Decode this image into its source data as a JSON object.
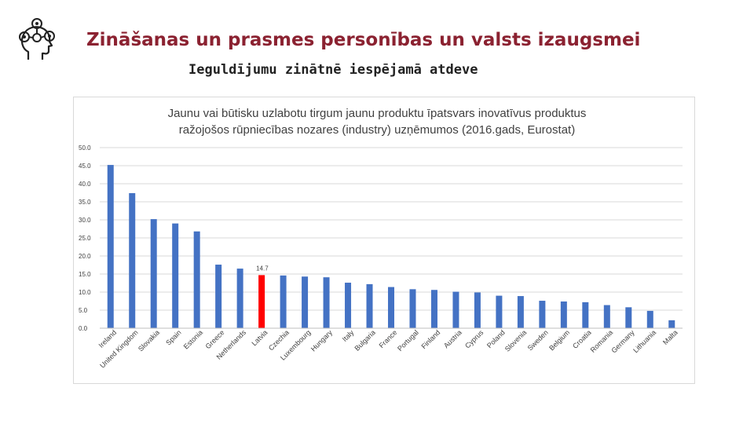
{
  "header": {
    "title": "Zināšanas un prasmes personības un valsts izaugsmei",
    "subtitle": "Ieguldījumu zinātnē iespējamā atdeve",
    "logo_icon": "head-with-ideas-icon"
  },
  "chart_data": {
    "type": "bar",
    "title_line1": "Jaunu vai būtisku uzlabotu tirgum jaunu produktu īpatsvars inovatīvus produktus",
    "title_line2": "ražojošos  rūpniecības nozares (industry) uzņēmumos (2016.gads, Eurostat)",
    "categories": [
      "Ireland",
      "United Kingdom",
      "Slovakia",
      "Spain",
      "Estonia",
      "Greece",
      "Netherlands",
      "Latvia",
      "Czechia",
      "Luxembourg",
      "Hungary",
      "Italy",
      "Bulgaria",
      "France",
      "Portugal",
      "Finland",
      "Austria",
      "Cyprus",
      "Poland",
      "Slovenia",
      "Sweden",
      "Belgium",
      "Croatia",
      "Romania",
      "Germany",
      "Lithuania",
      "Malta"
    ],
    "values": [
      45.2,
      37.4,
      30.2,
      29.0,
      26.8,
      17.6,
      16.5,
      14.7,
      14.6,
      14.3,
      14.1,
      12.6,
      12.2,
      11.4,
      10.8,
      10.6,
      10.1,
      9.9,
      9.0,
      8.9,
      7.6,
      7.4,
      7.2,
      6.4,
      5.8,
      4.8,
      2.2
    ],
    "highlight": {
      "category": "Latvia",
      "label": "14.7",
      "color": "#FF0000"
    },
    "bar_color": "#4472C4",
    "ylim": [
      0,
      50
    ],
    "yticks": [
      "0.0",
      "5.0",
      "10.0",
      "15.0",
      "20.0",
      "25.0",
      "30.0",
      "35.0",
      "40.0",
      "45.0",
      "50.0"
    ],
    "grid": true,
    "xlabel": "",
    "ylabel": ""
  }
}
